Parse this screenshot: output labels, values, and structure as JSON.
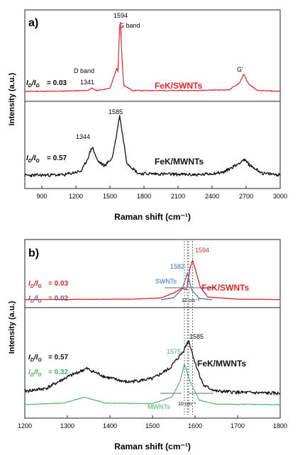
{
  "chart_data": [
    {
      "panel_label": "a)",
      "type": "line",
      "xlabel": "Raman shift (cm⁻¹)",
      "ylabel": "Intensity (a.u.)",
      "xlim": [
        750,
        3000
      ],
      "xticks": [
        900,
        1200,
        1500,
        1800,
        2100,
        2400,
        2700,
        3000
      ],
      "series": [
        {
          "name": "FeK/SWNTs",
          "color": "#e8262b",
          "ratio_text": "= 0.03",
          "points": [
            [
              750,
              0.04
            ],
            [
              1000,
              0.04
            ],
            [
              1300,
              0.05
            ],
            [
              1341,
              0.08
            ],
            [
              1380,
              0.05
            ],
            [
              1500,
              0.08
            ],
            [
              1560,
              0.35
            ],
            [
              1570,
              0.3
            ],
            [
              1585,
              0.9
            ],
            [
              1594,
              1.0
            ],
            [
              1602,
              0.6
            ],
            [
              1620,
              0.12
            ],
            [
              1700,
              0.05
            ],
            [
              2200,
              0.05
            ],
            [
              2550,
              0.06
            ],
            [
              2640,
              0.15
            ],
            [
              2680,
              0.27
            ],
            [
              2720,
              0.14
            ],
            [
              2800,
              0.05
            ],
            [
              3000,
              0.04
            ]
          ],
          "annotations": [
            {
              "text": "1594",
              "x": 1594
            },
            {
              "text": "G band",
              "x": 1594
            },
            {
              "text": "D band",
              "x": 1341
            },
            {
              "text": "1341",
              "x": 1341
            },
            {
              "text": "G'",
              "x": 2680
            }
          ]
        },
        {
          "name": "FeK/MWNTs",
          "color": "#111111",
          "ratio_text": "= 0.57",
          "points": [
            [
              750,
              0.05
            ],
            [
              1100,
              0.06
            ],
            [
              1250,
              0.12
            ],
            [
              1300,
              0.3
            ],
            [
              1344,
              0.5
            ],
            [
              1390,
              0.28
            ],
            [
              1450,
              0.2
            ],
            [
              1520,
              0.32
            ],
            [
              1560,
              0.7
            ],
            [
              1585,
              1.0
            ],
            [
              1610,
              0.7
            ],
            [
              1650,
              0.25
            ],
            [
              1750,
              0.08
            ],
            [
              2300,
              0.06
            ],
            [
              2500,
              0.1
            ],
            [
              2620,
              0.22
            ],
            [
              2680,
              0.3
            ],
            [
              2740,
              0.2
            ],
            [
              2850,
              0.08
            ],
            [
              3000,
              0.06
            ]
          ],
          "annotations": [
            {
              "text": "1585",
              "x": 1585
            },
            {
              "text": "1344",
              "x": 1344
            }
          ]
        }
      ]
    },
    {
      "panel_label": "b)",
      "type": "line",
      "xlabel": "Raman shift (cm⁻¹)",
      "ylabel": "Intensity (a.u.)",
      "xlim": [
        1200,
        1800
      ],
      "xticks": [
        1200,
        1300,
        1400,
        1500,
        1600,
        1700,
        1800
      ],
      "series": [
        {
          "name": "FeK/SWNTs",
          "color": "#e8262b",
          "ratio_text": "= 0.03",
          "peak_label": "1594",
          "points": [
            [
              1200,
              0.04
            ],
            [
              1450,
              0.05
            ],
            [
              1520,
              0.08
            ],
            [
              1550,
              0.2
            ],
            [
              1570,
              0.32
            ],
            [
              1580,
              0.28
            ],
            [
              1588,
              0.8
            ],
            [
              1594,
              1.0
            ],
            [
              1600,
              0.8
            ],
            [
              1612,
              0.35
            ],
            [
              1630,
              0.1
            ],
            [
              1700,
              0.05
            ],
            [
              1800,
              0.04
            ]
          ]
        },
        {
          "name": "SWNTs",
          "color": "#3e6fb6",
          "ratio_text": "= 0.02",
          "peak_label": "1582",
          "points": [
            [
              1520,
              0.04
            ],
            [
              1550,
              0.1
            ],
            [
              1570,
              0.35
            ],
            [
              1582,
              0.8
            ],
            [
              1592,
              0.32
            ],
            [
              1610,
              0.08
            ],
            [
              1640,
              0.04
            ]
          ]
        },
        {
          "name": "FeK/MWNTs",
          "color": "#111111",
          "ratio_text": "= 0.57",
          "peak_label": "1585",
          "points": [
            [
              1200,
              0.1
            ],
            [
              1250,
              0.15
            ],
            [
              1300,
              0.35
            ],
            [
              1345,
              0.5
            ],
            [
              1390,
              0.35
            ],
            [
              1440,
              0.26
            ],
            [
              1500,
              0.32
            ],
            [
              1540,
              0.5
            ],
            [
              1570,
              0.78
            ],
            [
              1585,
              1.0
            ],
            [
              1600,
              0.6
            ],
            [
              1620,
              0.2
            ],
            [
              1650,
              0.1
            ],
            [
              1700,
              0.08
            ],
            [
              1800,
              0.06
            ]
          ]
        },
        {
          "name": "MWNTs",
          "color": "#4fb06e",
          "ratio_text": "= 0.32",
          "peak_label": "1575",
          "points": [
            [
              1200,
              0.03
            ],
            [
              1290,
              0.06
            ],
            [
              1340,
              0.18
            ],
            [
              1390,
              0.06
            ],
            [
              1500,
              0.05
            ],
            [
              1545,
              0.18
            ],
            [
              1565,
              0.5
            ],
            [
              1575,
              0.85
            ],
            [
              1588,
              0.5
            ],
            [
              1610,
              0.12
            ],
            [
              1650,
              0.04
            ],
            [
              1800,
              0.03
            ]
          ]
        }
      ],
      "shift_labels": [
        "12 cm⁻¹",
        "10 cm⁻¹"
      ]
    }
  ]
}
